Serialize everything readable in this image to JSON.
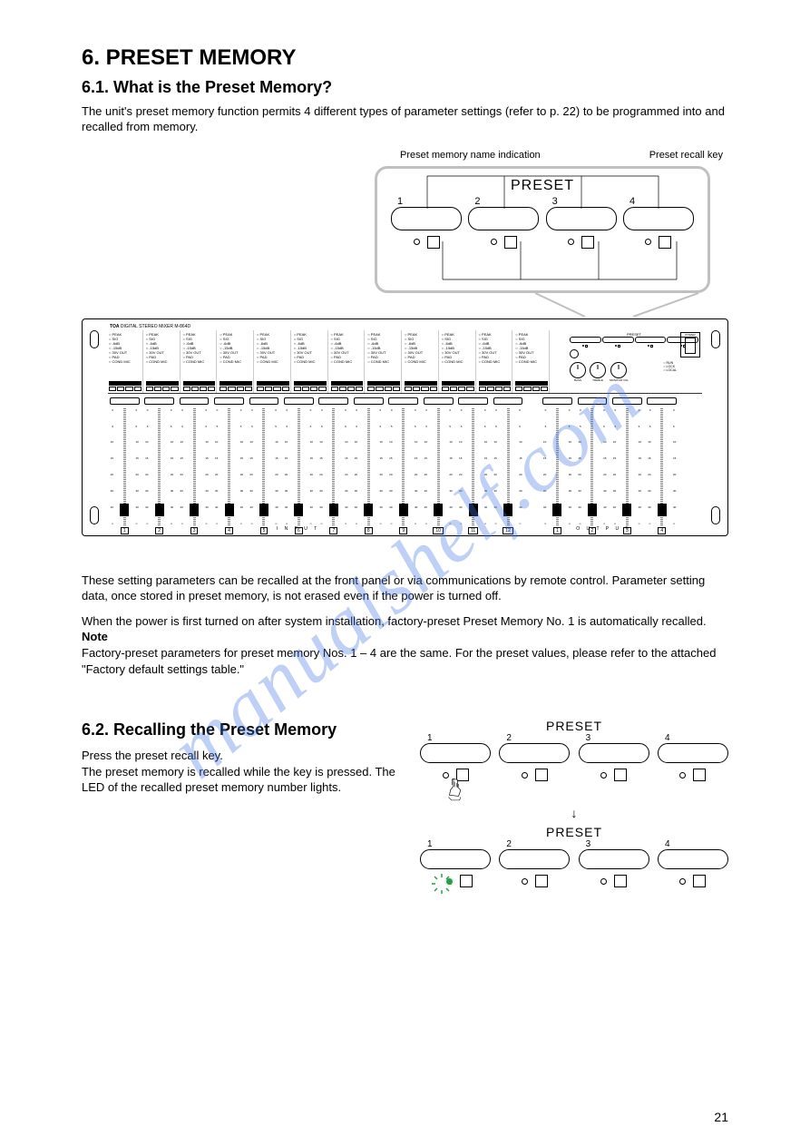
{
  "page": {
    "number": "21",
    "title": "6. PRESET MEMORY",
    "subtitle": "6.1. What is the Preset Memory?",
    "intro": "The unit's preset memory function permits 4 different types of parameter settings (refer to p. 22) to be programmed into and recalled from memory.",
    "preset_labels": [
      "Preset memory name indication",
      "Preset recall key"
    ],
    "preset_title": "PRESET",
    "preset_nums": [
      "1",
      "2",
      "3",
      "4"
    ],
    "body_p1": "These setting parameters can be recalled at the front panel or via communications by remote control. Parameter setting data, once stored in preset memory, is not erased even if the power is turned off.",
    "body_p2_intro": "When the power is first turned on after system installation, factory-preset Preset Memory No. 1 is automatically recalled.",
    "note_label": "Note",
    "body_p2_note": "Factory-preset parameters for preset memory Nos. 1 – 4 are the same. For the preset values, please refer to the attached \"Factory default settings table.\"",
    "recall_title": "6.2. Recalling the Preset Memory",
    "recall_text": "Press the preset recall key.\nThe preset memory is recalled while the key is pressed. The LED of the recalled preset memory number lights.",
    "mixer": {
      "brand": "TOA",
      "model": "DIGITAL STEREO MIXER M-864D",
      "input_label": "I N P U T",
      "output_label": "O U T P U T",
      "power_label": "POWER",
      "ch_lines": [
        "PEAK",
        "SIG",
        "-6dB",
        "-15dB",
        "30V OUT",
        "PAD",
        "COND MIC"
      ],
      "assign_label": "ASSIGN",
      "right_labels": [
        "PRESET",
        "RUN",
        "LOCK",
        "LOCAL"
      ],
      "knob_labels": [
        "BASS",
        "TREBLE",
        "MONITOR VOL"
      ],
      "input_channels": [
        "1",
        "2",
        "3",
        "4",
        "5",
        "6",
        "7",
        "8",
        "9",
        "10",
        "11",
        "12"
      ],
      "output_channels": [
        "1",
        "2",
        "3",
        "4"
      ],
      "fader_ticks": [
        "0",
        "5",
        "10",
        "15",
        "20",
        "30",
        "40",
        "∞"
      ]
    }
  }
}
